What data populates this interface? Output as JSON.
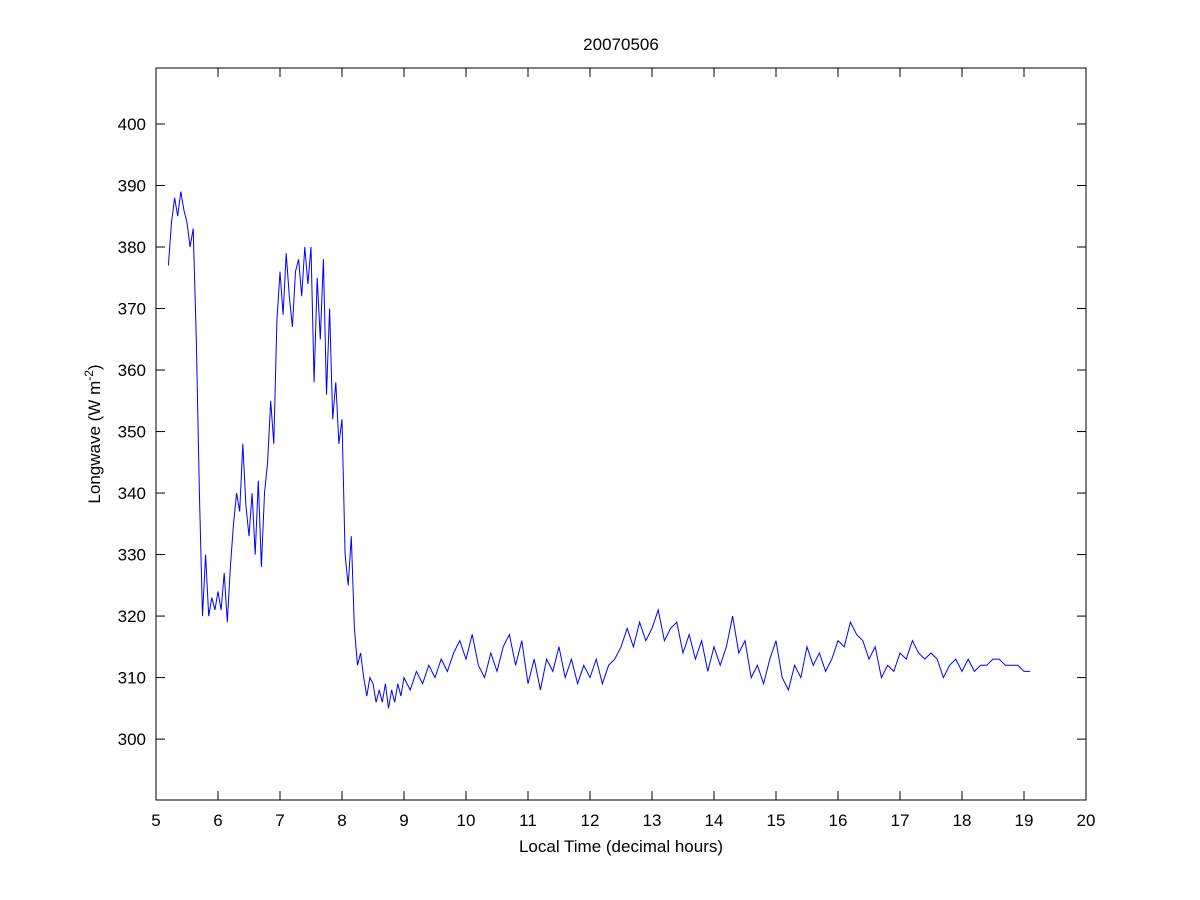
{
  "chart_data": {
    "type": "line",
    "title": "20070506",
    "xlabel": "Local Time (decimal hours)",
    "ylabel": "Longwave (W m",
    "ylabel_sup": "-2",
    "ylabel_end": ")",
    "xlim": [
      5,
      20
    ],
    "ylim": [
      290.1,
      409.1
    ],
    "xticks": [
      5,
      6,
      7,
      8,
      9,
      10,
      11,
      12,
      13,
      14,
      15,
      16,
      17,
      18,
      19,
      20
    ],
    "yticks": [
      300,
      310,
      320,
      330,
      340,
      350,
      360,
      370,
      380,
      390,
      400
    ],
    "grid": false,
    "line_color": "#0000ff",
    "series": [
      {
        "name": "Longwave",
        "x": [
          5.2,
          5.25,
          5.3,
          5.35,
          5.4,
          5.45,
          5.5,
          5.55,
          5.6,
          5.65,
          5.7,
          5.75,
          5.8,
          5.85,
          5.9,
          5.95,
          6.0,
          6.05,
          6.1,
          6.15,
          6.2,
          6.25,
          6.3,
          6.35,
          6.4,
          6.45,
          6.5,
          6.55,
          6.6,
          6.65,
          6.7,
          6.75,
          6.8,
          6.85,
          6.9,
          6.95,
          7.0,
          7.05,
          7.1,
          7.15,
          7.2,
          7.25,
          7.3,
          7.35,
          7.4,
          7.45,
          7.5,
          7.55,
          7.6,
          7.65,
          7.7,
          7.75,
          7.8,
          7.85,
          7.9,
          7.95,
          8.0,
          8.05,
          8.1,
          8.15,
          8.2,
          8.25,
          8.3,
          8.35,
          8.4,
          8.45,
          8.5,
          8.55,
          8.6,
          8.65,
          8.7,
          8.75,
          8.8,
          8.85,
          8.9,
          8.95,
          9.0,
          9.1,
          9.2,
          9.3,
          9.4,
          9.5,
          9.6,
          9.7,
          9.8,
          9.9,
          10.0,
          10.1,
          10.2,
          10.3,
          10.4,
          10.5,
          10.6,
          10.7,
          10.8,
          10.9,
          11.0,
          11.1,
          11.2,
          11.3,
          11.4,
          11.5,
          11.6,
          11.7,
          11.8,
          11.9,
          12.0,
          12.1,
          12.2,
          12.3,
          12.4,
          12.5,
          12.6,
          12.7,
          12.8,
          12.9,
          13.0,
          13.1,
          13.2,
          13.3,
          13.4,
          13.5,
          13.6,
          13.7,
          13.8,
          13.9,
          14.0,
          14.1,
          14.2,
          14.3,
          14.4,
          14.5,
          14.6,
          14.7,
          14.8,
          14.9,
          15.0,
          15.1,
          15.2,
          15.3,
          15.4,
          15.5,
          15.6,
          15.7,
          15.8,
          15.9,
          16.0,
          16.1,
          16.2,
          16.3,
          16.4,
          16.5,
          16.6,
          16.7,
          16.8,
          16.9,
          17.0,
          17.1,
          17.2,
          17.3,
          17.4,
          17.5,
          17.6,
          17.7,
          17.8,
          17.9,
          18.0,
          18.1,
          18.2,
          18.3,
          18.4,
          18.5,
          18.6,
          18.7,
          18.8,
          18.9,
          19.0,
          19.1
        ],
        "y": [
          377,
          384,
          388,
          385,
          389,
          386,
          384,
          380,
          383,
          365,
          340,
          320,
          330,
          320,
          323,
          321,
          324,
          321,
          327,
          319,
          328,
          335,
          340,
          337,
          348,
          338,
          333,
          340,
          330,
          342,
          328,
          340,
          345,
          355,
          348,
          368,
          376,
          369,
          379,
          372,
          367,
          376,
          378,
          372,
          380,
          374,
          380,
          358,
          375,
          365,
          378,
          356,
          370,
          352,
          358,
          348,
          352,
          330,
          325,
          333,
          318,
          312,
          314,
          310,
          307,
          310,
          309,
          306,
          308,
          306,
          309,
          305,
          308,
          306,
          309,
          307,
          310,
          308,
          311,
          309,
          312,
          310,
          313,
          311,
          314,
          316,
          313,
          317,
          312,
          310,
          314,
          311,
          315,
          317,
          312,
          316,
          309,
          313,
          308,
          313,
          311,
          315,
          310,
          313,
          309,
          312,
          310,
          313,
          309,
          312,
          313,
          315,
          318,
          315,
          319,
          316,
          318,
          321,
          316,
          318,
          319,
          314,
          317,
          313,
          316,
          311,
          315,
          312,
          315,
          320,
          314,
          316,
          310,
          312,
          309,
          313,
          316,
          310,
          308,
          312,
          310,
          315,
          312,
          314,
          311,
          313,
          316,
          315,
          319,
          317,
          316,
          313,
          315,
          310,
          312,
          311,
          314,
          313,
          316,
          314,
          313,
          314,
          313,
          310,
          312,
          313,
          311,
          313,
          311,
          312,
          312,
          313,
          313,
          312,
          312,
          312,
          311,
          311
        ]
      }
    ]
  }
}
